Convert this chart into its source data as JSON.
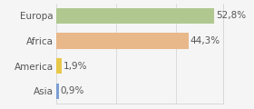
{
  "categories": [
    "Asia",
    "America",
    "Africa",
    "Europa"
  ],
  "values": [
    0.9,
    1.9,
    44.3,
    52.8
  ],
  "bar_colors": [
    "#7b9fd4",
    "#e8c84a",
    "#e8b88a",
    "#b0c890"
  ],
  "labels": [
    "0,9%",
    "1,9%",
    "44,3%",
    "52,8%"
  ],
  "xlim": [
    0,
    56
  ],
  "background_color": "#f5f5f5",
  "bar_height": 0.62,
  "label_fontsize": 7.5,
  "tick_fontsize": 7.5,
  "text_color": "#555555",
  "grid_color": "#d0d0d0",
  "border_color": "#cccccc"
}
